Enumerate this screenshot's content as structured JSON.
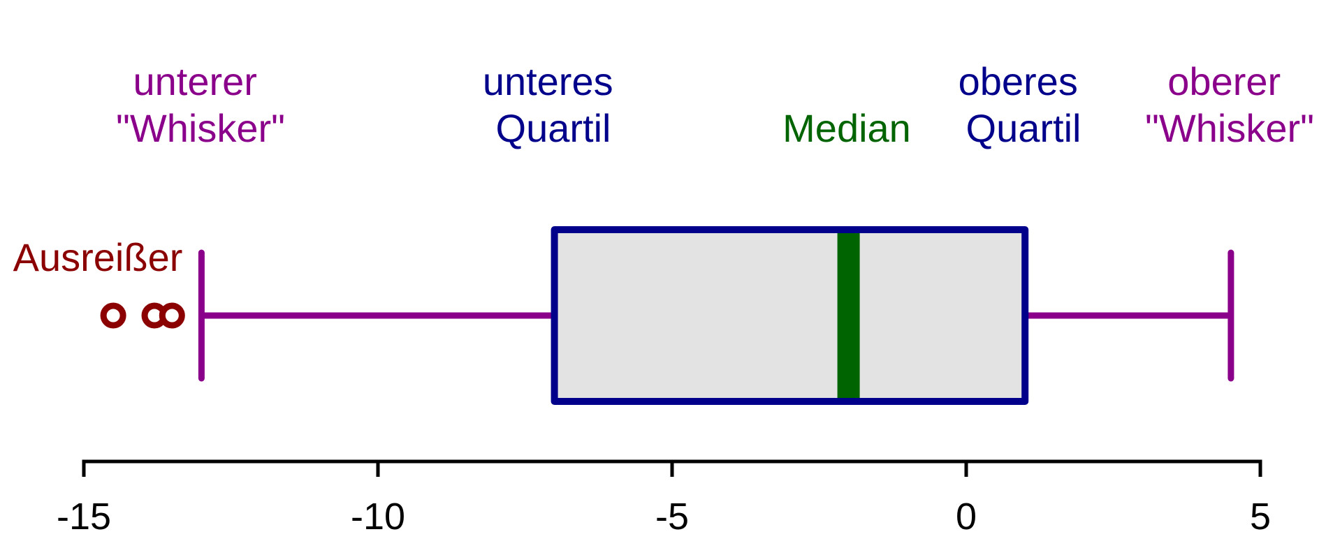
{
  "chart_data": {
    "type": "boxplot",
    "xlim": [
      -15,
      5
    ],
    "x_ticks": [
      -15,
      -10,
      -5,
      0,
      5
    ],
    "tick_labels": [
      "-15",
      "-10",
      "-5",
      "0",
      "5"
    ],
    "stats": {
      "lower_whisker": -13,
      "q1": -7,
      "median": -2,
      "q3": 1,
      "upper_whisker": 4.5,
      "outliers": [
        -14.5,
        -13.8,
        -13.5
      ]
    },
    "annotations": {
      "lower_whisker": [
        "unterer",
        "\"Whisker\""
      ],
      "lower_quartile": [
        "unteres",
        "Quartil"
      ],
      "median": [
        "Median"
      ],
      "upper_quartile": [
        "oberes",
        "Quartil"
      ],
      "upper_whisker": [
        "oberer",
        "\"Whisker\""
      ],
      "outliers": [
        "Ausreißer"
      ]
    },
    "colors": {
      "whisker": "#8b008b",
      "box": "#00008b",
      "median": "#006400",
      "outlier": "#8b0000",
      "box_fill": "#e3e3e3",
      "axis": "#000000"
    }
  }
}
